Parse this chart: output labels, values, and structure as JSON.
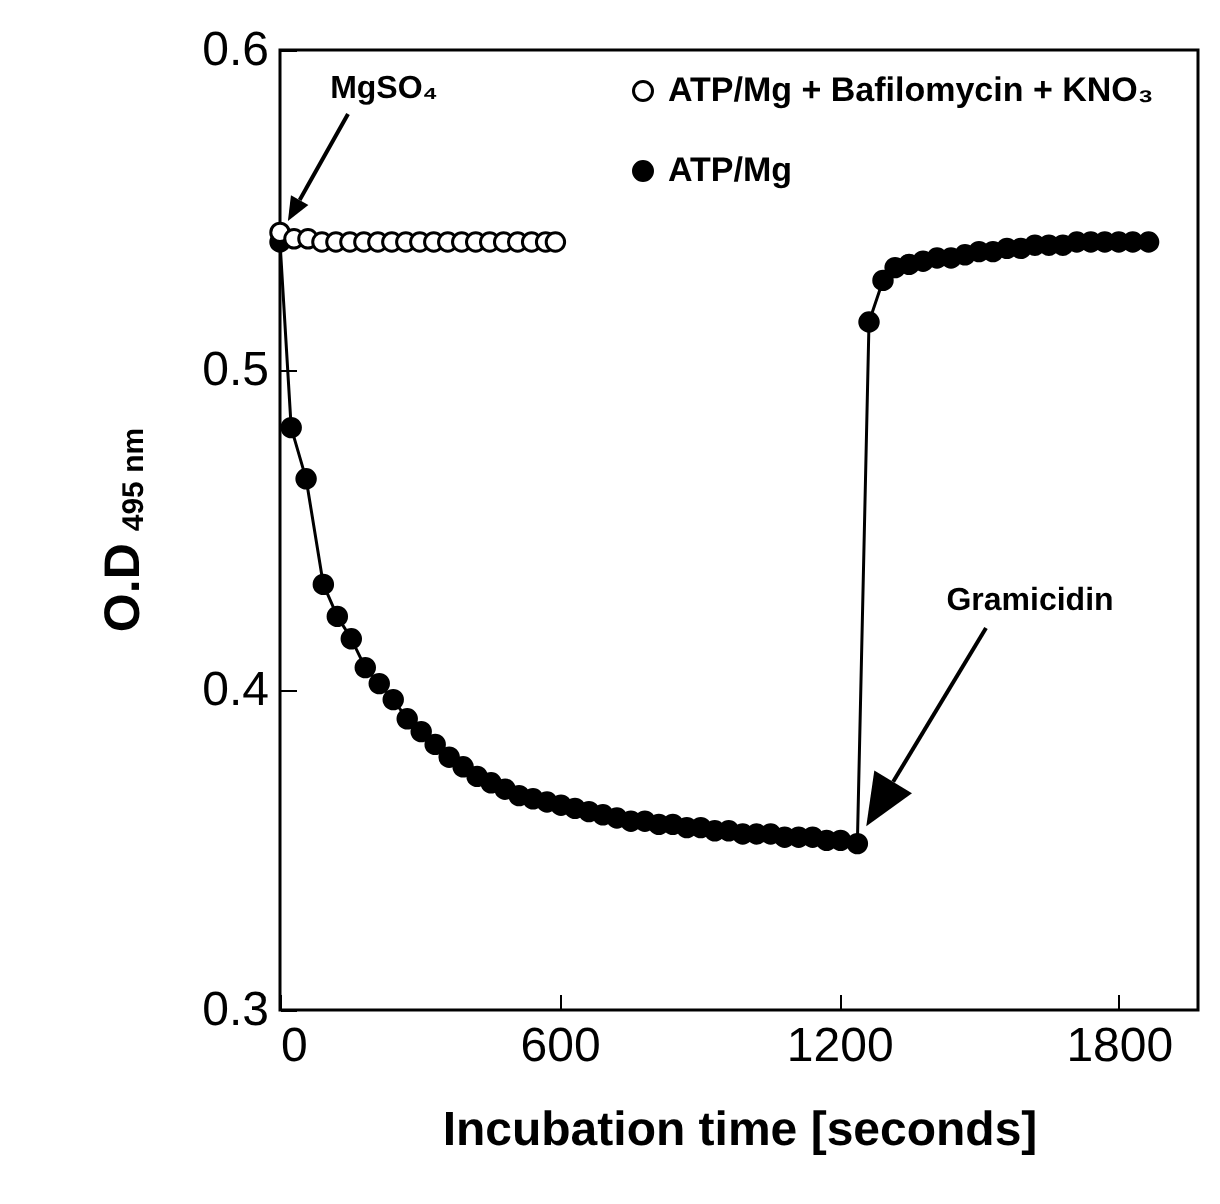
{
  "chart_data": {
    "type": "line",
    "xlabel": "Incubation time [seconds]",
    "ylabel": "O.D$_{495 nm}$",
    "xlim": [
      0,
      1970
    ],
    "xticks": [
      0,
      600,
      1200,
      1800
    ],
    "ylim": [
      0.3,
      0.6
    ],
    "yticks": [
      0.3,
      0.4,
      0.5,
      0.6
    ],
    "marker": "circle",
    "legend": "top right",
    "grid": false,
    "series": [
      {
        "name": "ATP/Mg  + Bafilomycin  + KNO₃",
        "type": "scatter",
        "color": "#ffffff",
        "x": [
          0,
          30,
          60,
          90,
          120,
          150,
          180,
          210,
          240,
          270,
          300,
          330,
          360,
          390,
          420,
          450,
          480,
          510,
          540,
          570,
          591
        ],
        "values": [
          0.543,
          0.541,
          0.541,
          0.54,
          0.54,
          0.54,
          0.54,
          0.54,
          0.54,
          0.54,
          0.54,
          0.54,
          0.54,
          0.54,
          0.54,
          0.54,
          0.54,
          0.54,
          0.54,
          0.54,
          0.54
        ]
      },
      {
        "name": "ATP/Mg",
        "color": "#000000",
        "x": [
          0,
          24,
          56,
          93,
          123,
          153,
          183,
          213,
          243,
          273,
          303,
          333,
          363,
          393,
          423,
          453,
          483,
          513,
          543,
          573,
          603,
          633,
          663,
          693,
          723,
          753,
          783,
          813,
          843,
          873,
          903,
          933,
          963,
          993,
          1023,
          1053,
          1083,
          1113,
          1143,
          1173,
          1203,
          1239,
          1264,
          1294,
          1320,
          1350,
          1380,
          1410,
          1440,
          1470,
          1500,
          1530,
          1560,
          1590,
          1620,
          1650,
          1680,
          1710,
          1740,
          1770,
          1800,
          1830,
          1864
        ],
        "values": [
          0.54,
          0.482,
          0.466,
          0.433,
          0.423,
          0.416,
          0.407,
          0.402,
          0.397,
          0.391,
          0.387,
          0.383,
          0.379,
          0.376,
          0.373,
          0.371,
          0.369,
          0.367,
          0.366,
          0.365,
          0.364,
          0.363,
          0.362,
          0.361,
          0.36,
          0.359,
          0.359,
          0.358,
          0.358,
          0.357,
          0.357,
          0.356,
          0.356,
          0.355,
          0.355,
          0.355,
          0.354,
          0.354,
          0.354,
          0.353,
          0.353,
          0.352,
          0.515,
          0.528,
          0.532,
          0.533,
          0.534,
          0.535,
          0.535,
          0.536,
          0.537,
          0.537,
          0.538,
          0.538,
          0.539,
          0.539,
          0.539,
          0.54,
          0.54,
          0.54,
          0.54,
          0.54,
          0.54
        ]
      }
    ],
    "annotations": [
      "MgSO₄",
      "Gramicidin"
    ]
  }
}
